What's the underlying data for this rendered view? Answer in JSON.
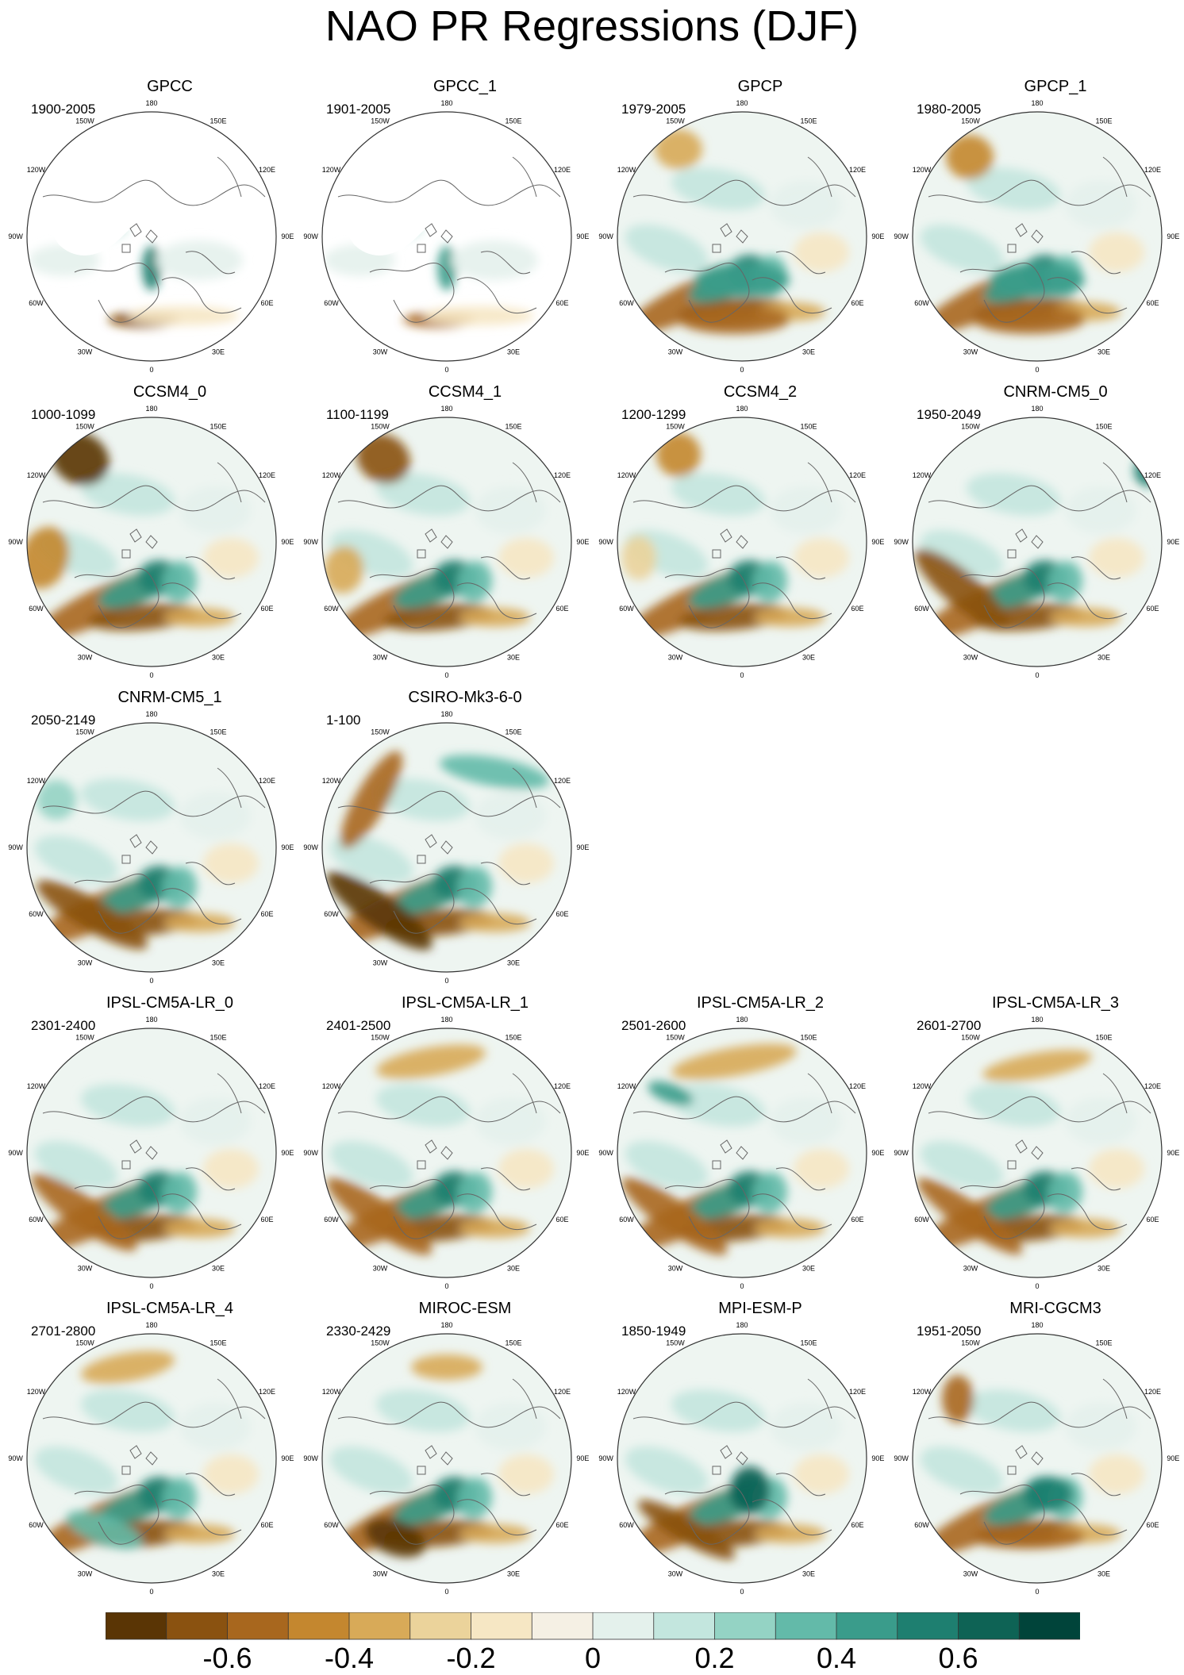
{
  "title": "NAO PR Regressions (DJF)",
  "longitude_labels": [
    "180",
    "150E",
    "120E",
    "90E",
    "60E",
    "30E",
    "0",
    "30W",
    "60W",
    "90W",
    "120W",
    "150W"
  ],
  "panels": [
    {
      "name": "GPCC",
      "period": "1900-2005",
      "observation": true
    },
    {
      "name": "GPCC_1",
      "period": "1901-2005",
      "observation": true
    },
    {
      "name": "GPCP",
      "period": "1979-2005",
      "observation": true
    },
    {
      "name": "GPCP_1",
      "period": "1980-2005",
      "observation": true
    },
    {
      "name": "CCSM4_0",
      "period": "1000-1099"
    },
    {
      "name": "CCSM4_1",
      "period": "1100-1199"
    },
    {
      "name": "CCSM4_2",
      "period": "1200-1299"
    },
    {
      "name": "CNRM-CM5_0",
      "period": "1950-2049"
    },
    {
      "name": "CNRM-CM5_1",
      "period": "2050-2149"
    },
    {
      "name": "CSIRO-Mk3-6-0",
      "period": "1-100"
    },
    {
      "name": "IPSL-CM5A-LR_0",
      "period": "2301-2400"
    },
    {
      "name": "IPSL-CM5A-LR_1",
      "period": "2401-2500"
    },
    {
      "name": "IPSL-CM5A-LR_2",
      "period": "2501-2600"
    },
    {
      "name": "IPSL-CM5A-LR_3",
      "period": "2601-2700"
    },
    {
      "name": "IPSL-CM5A-LR_4",
      "period": "2701-2800"
    },
    {
      "name": "MIROC-ESM",
      "period": "2330-2429"
    },
    {
      "name": "MPI-ESM-P",
      "period": "1850-1949"
    },
    {
      "name": "MRI-CGCM3",
      "period": "1951-2050"
    }
  ],
  "colorbar": {
    "colors": [
      "#5a3505",
      "#8a5210",
      "#a8671e",
      "#c4872f",
      "#d8aa58",
      "#ebd39b",
      "#f6e7c4",
      "#f5f0e4",
      "#e4f1ec",
      "#c3e6de",
      "#94d3c4",
      "#63baa9",
      "#3a9c8b",
      "#1e7f70",
      "#0e6355",
      "#00443a"
    ],
    "labels": [
      "-0.6",
      "-0.4",
      "-0.2",
      "0",
      "0.2",
      "0.4",
      "0.6"
    ]
  }
}
